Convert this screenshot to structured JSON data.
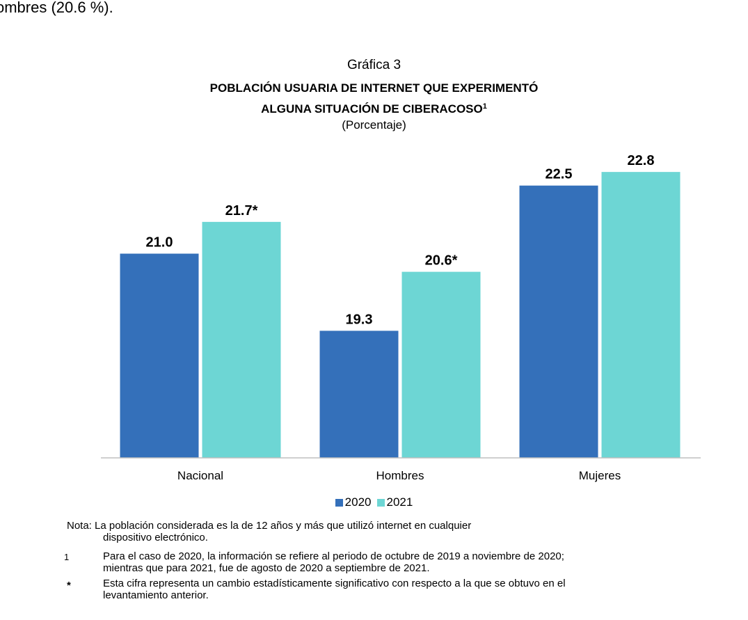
{
  "page": {
    "top_fragment": "ombres (20.6 %)."
  },
  "colors": {
    "series_2020": "#3470ba",
    "series_2021": "#6dd6d4",
    "axis": "#bfbfbf"
  },
  "chart_data": {
    "type": "bar",
    "caption": "Gráfica 3",
    "title": "POBLACIÓN USUARIA DE INTERNET QUE EXPERIMENTÓ ALGUNA SITUACIÓN DE CIBERACOSO",
    "title_line1": "POBLACIÓN USUARIA DE INTERNET QUE EXPERIMENTÓ",
    "title_line2": "ALGUNA SITUACIÓN DE CIBERACOSO",
    "title_footnote_mark": "1",
    "subtitle": "(Porcentaje)",
    "categories": [
      "Nacional",
      "Hombres",
      "Mujeres"
    ],
    "series": [
      {
        "name": "2020",
        "values": [
          21.0,
          19.3,
          22.5
        ],
        "labels": [
          "21.0",
          "19.3",
          "22.5"
        ]
      },
      {
        "name": "2021",
        "values": [
          21.7,
          20.6,
          22.8
        ],
        "labels": [
          "21.7*",
          "20.6*",
          "22.8"
        ]
      }
    ],
    "ylim": [
      16.5,
      23.4
    ],
    "grid": false,
    "legend": "bottom"
  },
  "notes": {
    "nota_line1": "Nota: La población considerada es la de 12 años y más que utilizó internet en cualquier",
    "nota_line2": "dispositivo electrónico.",
    "fn1_mark": "1",
    "fn1_line1": "Para el caso de 2020, la información se refiere al periodo de octubre de 2019 a noviembre de 2020;",
    "fn1_line2": "mientras que para 2021, fue de agosto de 2020 a septiembre de 2021.",
    "fn2_mark": "*",
    "fn2_line1": "Esta cifra representa un cambio estadísticamente significativo con respecto a la que se obtuvo en el",
    "fn2_line2": "levantamiento anterior."
  }
}
